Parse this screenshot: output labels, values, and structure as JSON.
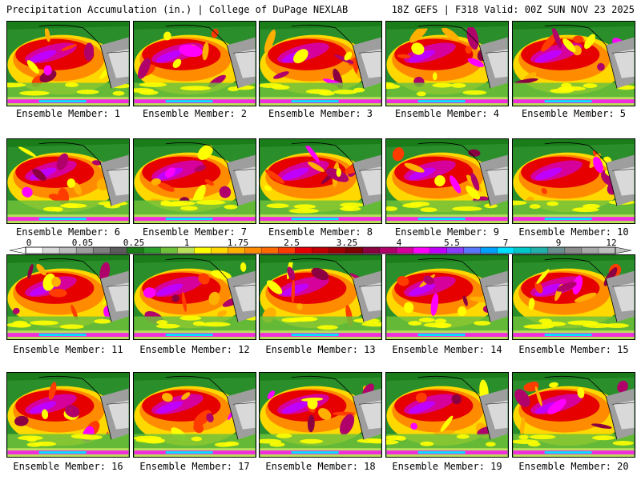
{
  "header": {
    "title": "Precipitation Accumulation (in.) | College of DuPage NEXLAB",
    "run": "18Z GEFS | F318 Valid: 00Z SUN NOV 23 2025"
  },
  "members": [
    "Ensemble Member: 1",
    "Ensemble Member: 2",
    "Ensemble Member: 3",
    "Ensemble Member: 4",
    "Ensemble Member: 5",
    "Ensemble Member: 6",
    "Ensemble Member: 7",
    "Ensemble Member: 8",
    "Ensemble Member: 9",
    "Ensemble Member: 10",
    "Ensemble Member: 11",
    "Ensemble Member: 12",
    "Ensemble Member: 13",
    "Ensemble Member: 14",
    "Ensemble Member: 15",
    "Ensemble Member: 16",
    "Ensemble Member: 17",
    "Ensemble Member: 18",
    "Ensemble Member: 19",
    "Ensemble Member: 20"
  ],
  "colorbar": {
    "ticks": [
      "0",
      "0.05",
      "0.25",
      "1",
      "1.75",
      "2.5",
      "3.25",
      "4",
      "5.5",
      "7",
      "9",
      "12"
    ],
    "colors": [
      "#ffffff",
      "#d9d9d9",
      "#bdbdbd",
      "#9e9e9e",
      "#7f7f7f",
      "#5c5c5c",
      "#1a7d1a",
      "#2aa02a",
      "#6ec23a",
      "#b8e05a",
      "#ffff00",
      "#ffd800",
      "#ffb000",
      "#ff8c00",
      "#ff6a00",
      "#ff3c00",
      "#e60000",
      "#c00000",
      "#a00000",
      "#800000",
      "#8b0040",
      "#b0006a",
      "#d6009a",
      "#ff00ff",
      "#c000ff",
      "#8a3cff",
      "#5a78ff",
      "#00a0ff",
      "#00e0ff",
      "#00c8c8",
      "#20b2aa",
      "#6b8e8e",
      "#8c8c8c",
      "#a9a9a9",
      "#c0c0c0"
    ]
  }
}
